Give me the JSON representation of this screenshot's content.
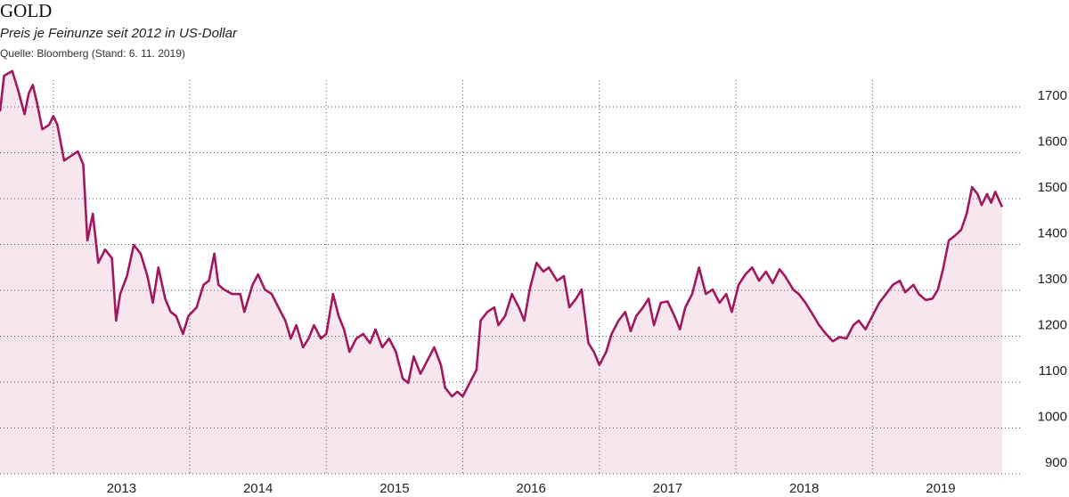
{
  "chart_data": {
    "type": "line",
    "title": "GOLD",
    "subtitle": "Preis je Feinunze seit 2012 in US-Dollar",
    "source": "Quelle: Bloomberg (Stand: 6. 11. 2019)",
    "color": "#a0185e",
    "fill_color": "#f8e6ee",
    "grid": true,
    "xlim": [
      2012.61,
      2020.44
    ],
    "ylim": [
      900,
      1800
    ],
    "xticks": [
      2013,
      2014,
      2015,
      2016,
      2017,
      2018,
      2019
    ],
    "yticks": [
      900,
      1000,
      1100,
      1200,
      1300,
      1400,
      1500,
      1600,
      1700
    ],
    "x": [
      2012.61,
      2012.64,
      2012.7,
      2012.74,
      2012.79,
      2012.82,
      2012.85,
      2012.88,
      2012.92,
      2012.97,
      2013.0,
      2013.03,
      2013.08,
      2013.13,
      2013.18,
      2013.22,
      2013.25,
      2013.29,
      2013.33,
      2013.38,
      2013.43,
      2013.46,
      2013.49,
      2013.54,
      2013.59,
      2013.64,
      2013.69,
      2013.73,
      2013.77,
      2013.82,
      2013.86,
      2013.9,
      2013.95,
      2013.99,
      2014.05,
      2014.1,
      2014.14,
      2014.18,
      2014.21,
      2014.25,
      2014.31,
      2014.37,
      2014.4,
      2014.46,
      2014.5,
      2014.55,
      2014.6,
      2014.65,
      2014.7,
      2014.74,
      2014.78,
      2014.83,
      2014.87,
      2014.91,
      2014.96,
      2015.0,
      2015.05,
      2015.09,
      2015.13,
      2015.17,
      2015.22,
      2015.27,
      2015.32,
      2015.36,
      2015.41,
      2015.46,
      2015.51,
      2015.56,
      2015.6,
      2015.64,
      2015.69,
      2015.74,
      2015.79,
      2015.84,
      2015.87,
      2015.92,
      2015.96,
      2016.0,
      2016.05,
      2016.1,
      2016.13,
      2016.18,
      2016.23,
      2016.26,
      2016.31,
      2016.36,
      2016.41,
      2016.45,
      2016.49,
      2016.54,
      2016.59,
      2016.63,
      2016.69,
      2016.74,
      2016.78,
      2016.83,
      2016.87,
      2016.92,
      2016.96,
      2017.0,
      2017.05,
      2017.09,
      2017.14,
      2017.19,
      2017.23,
      2017.27,
      2017.32,
      2017.36,
      2017.4,
      2017.45,
      2017.5,
      2017.55,
      2017.59,
      2017.63,
      2017.68,
      2017.73,
      2017.78,
      2017.83,
      2017.88,
      2017.93,
      2017.97,
      2018.02,
      2018.07,
      2018.12,
      2018.17,
      2018.22,
      2018.27,
      2018.32,
      2018.36,
      2018.42,
      2018.46,
      2018.51,
      2018.57,
      2018.61,
      2018.66,
      2018.71,
      2018.76,
      2018.81,
      2018.86,
      2018.9,
      2018.95,
      2019.0,
      2019.05,
      2019.1,
      2019.15,
      2019.2,
      2019.24,
      2019.3,
      2019.34,
      2019.39,
      2019.44,
      2019.48,
      2019.52,
      2019.56,
      2019.6,
      2019.65,
      2019.69,
      2019.73,
      2019.77,
      2019.8,
      2019.84,
      2019.87,
      2019.9,
      2019.95
    ],
    "values": [
      1690,
      1768,
      1778,
      1739,
      1684,
      1729,
      1748,
      1710,
      1651,
      1661,
      1680,
      1661,
      1583,
      1593,
      1603,
      1574,
      1409,
      1467,
      1360,
      1389,
      1370,
      1234,
      1292,
      1331,
      1399,
      1380,
      1331,
      1273,
      1350,
      1282,
      1253,
      1244,
      1205,
      1244,
      1263,
      1312,
      1321,
      1380,
      1312,
      1302,
      1292,
      1292,
      1253,
      1312,
      1335,
      1302,
      1292,
      1263,
      1234,
      1195,
      1224,
      1176,
      1195,
      1224,
      1195,
      1205,
      1292,
      1244,
      1215,
      1166,
      1195,
      1205,
      1185,
      1215,
      1176,
      1195,
      1166,
      1108,
      1098,
      1156,
      1118,
      1147,
      1176,
      1137,
      1088,
      1069,
      1079,
      1069,
      1098,
      1127,
      1234,
      1253,
      1263,
      1224,
      1244,
      1292,
      1263,
      1234,
      1302,
      1360,
      1341,
      1350,
      1321,
      1331,
      1263,
      1282,
      1302,
      1185,
      1166,
      1137,
      1166,
      1205,
      1234,
      1253,
      1211,
      1244,
      1263,
      1282,
      1224,
      1273,
      1276,
      1244,
      1215,
      1263,
      1292,
      1350,
      1292,
      1302,
      1273,
      1292,
      1253,
      1312,
      1335,
      1350,
      1321,
      1341,
      1316,
      1346,
      1331,
      1302,
      1292,
      1273,
      1244,
      1224,
      1205,
      1189,
      1198,
      1195,
      1224,
      1234,
      1215,
      1244,
      1273,
      1292,
      1312,
      1321,
      1296,
      1312,
      1292,
      1279,
      1282,
      1302,
      1350,
      1409,
      1418,
      1432,
      1467,
      1525,
      1510,
      1486,
      1510,
      1491,
      1515,
      1482
    ]
  }
}
